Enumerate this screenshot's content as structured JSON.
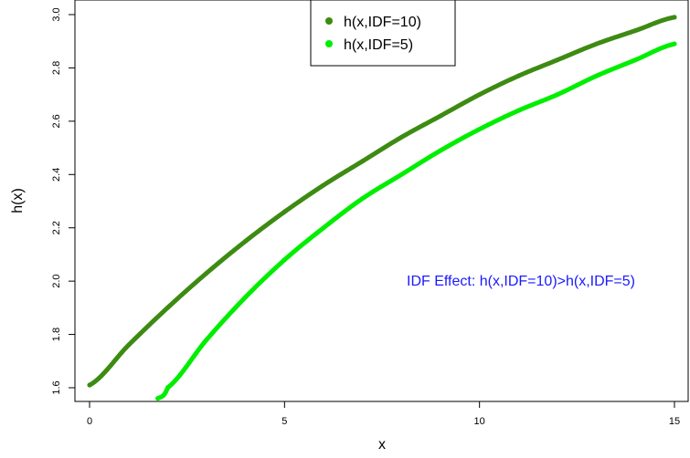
{
  "chart_data": {
    "type": "line",
    "title": "",
    "xlabel": "x",
    "ylabel": "h(x)",
    "xlim": [
      0,
      15
    ],
    "ylim": [
      1.57,
      3.01
    ],
    "xticks": [
      0,
      5,
      10,
      15
    ],
    "yticks": [
      1.6,
      1.8,
      2.0,
      2.2,
      2.4,
      2.6,
      2.8,
      3.0
    ],
    "xtick_labels": [
      "0",
      "5",
      "10",
      "15"
    ],
    "ytick_labels": [
      "1.6",
      "1.8",
      "2.0",
      "2.2",
      "2.4",
      "2.6",
      "2.8",
      "3.0"
    ],
    "grid": false,
    "legend_position": "top-center",
    "legend": [
      "h(x,IDF=10)",
      "h(x,IDF=5)"
    ],
    "annotation": "IDF Effect: h(x,IDF=10)>h(x,IDF=5)",
    "annotation_color": "#1a1aff",
    "series": [
      {
        "name": "h(x,IDF=10)",
        "color": "#3d8b12",
        "x": [
          0,
          1,
          2,
          3,
          4,
          5,
          6,
          7,
          8,
          9,
          10,
          11,
          12,
          13,
          14,
          15
        ],
        "y": [
          1.61,
          1.76,
          1.9,
          2.03,
          2.15,
          2.26,
          2.36,
          2.45,
          2.54,
          2.62,
          2.7,
          2.77,
          2.83,
          2.89,
          2.94,
          2.99
        ]
      },
      {
        "name": "h(x,IDF=5)",
        "color": "#00ee00",
        "x": [
          1.75,
          2,
          3,
          4,
          5,
          6,
          7,
          8,
          9,
          10,
          11,
          12,
          13,
          14,
          15
        ],
        "y": [
          1.56,
          1.6,
          1.78,
          1.94,
          2.08,
          2.2,
          2.31,
          2.4,
          2.49,
          2.57,
          2.64,
          2.7,
          2.77,
          2.83,
          2.89
        ]
      }
    ]
  }
}
